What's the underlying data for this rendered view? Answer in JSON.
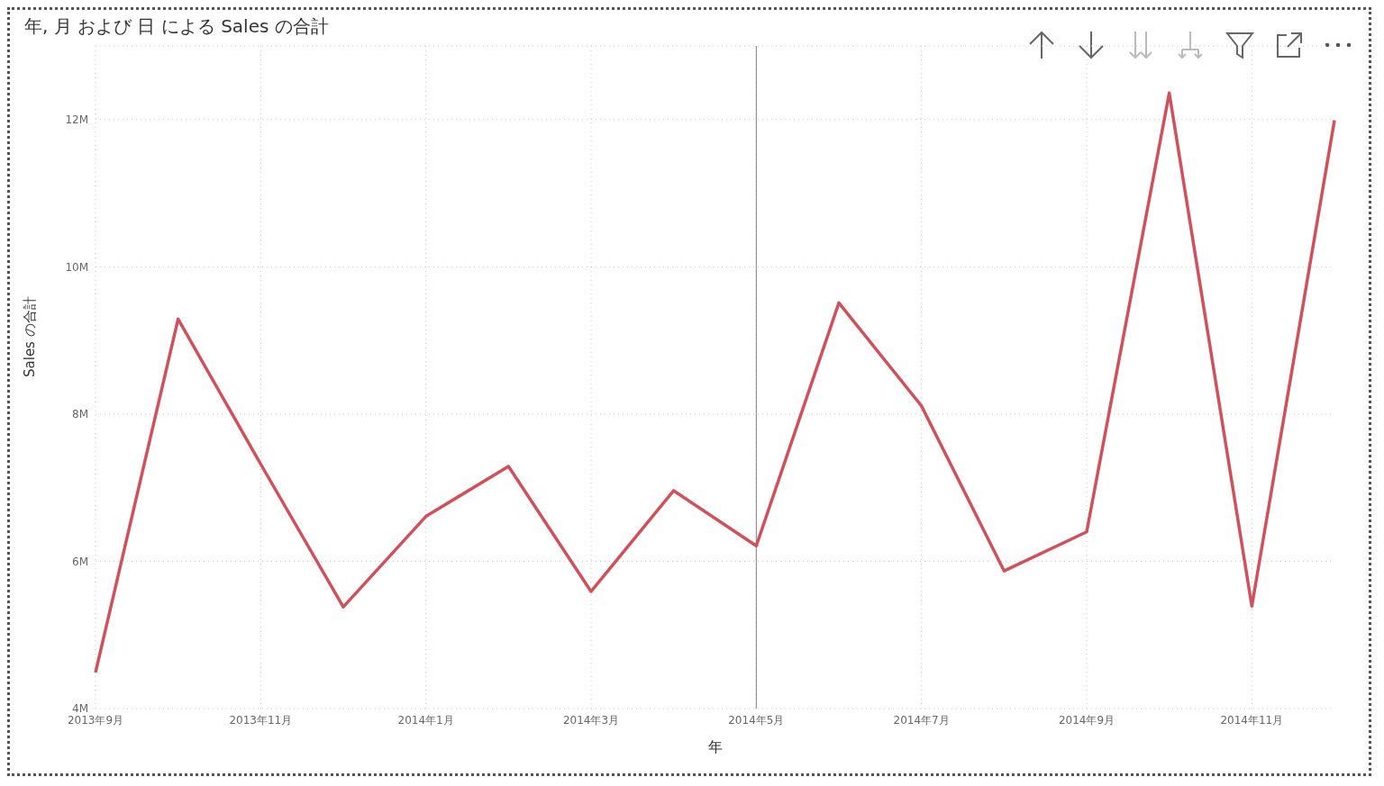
{
  "chart_data": {
    "type": "line",
    "title": "年, 月 および 日 による Sales の合計",
    "xlabel": "年",
    "ylabel": "Sales の合計",
    "categories": [
      "2013年9月",
      null,
      "2013年11月",
      null,
      "2014年1月",
      null,
      "2014年3月",
      null,
      "2014年5月",
      null,
      "2014年7月",
      null,
      "2014年9月",
      null,
      "2014年11月",
      null
    ],
    "series": [
      {
        "color": "#d0505c",
        "values": [
          4490000,
          9290000,
          7320000,
          5380000,
          6610000,
          7290000,
          5590000,
          6960000,
          6210000,
          9510000,
          8110000,
          5870000,
          6400000,
          12360000,
          5390000,
          11990000
        ]
      }
    ],
    "ylim": [
      4000000,
      13000000
    ],
    "yticks": [
      {
        "value": 4000000,
        "label": "4M"
      },
      {
        "value": 6000000,
        "label": "6M"
      },
      {
        "value": 8000000,
        "label": "8M"
      },
      {
        "value": 10000000,
        "label": "10M"
      },
      {
        "value": 12000000,
        "label": "12M"
      }
    ],
    "ref_lines": [
      {
        "axis": "x",
        "value": "2014年5月",
        "color": "#808080",
        "line_style": "solid"
      }
    ],
    "grid": true,
    "marker": "none",
    "line_style": "solid"
  }
}
